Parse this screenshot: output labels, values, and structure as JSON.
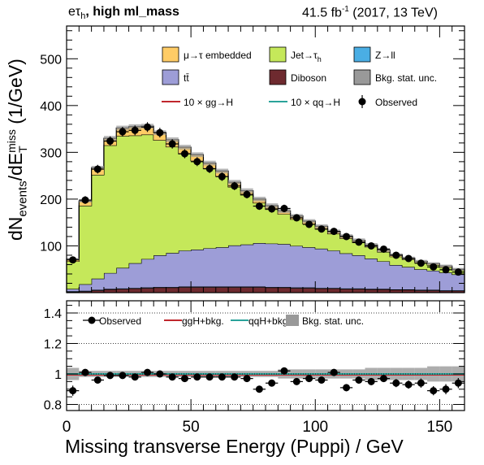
{
  "header": {
    "channel_base": "eτ",
    "channel_sub": "h",
    "category": ", high ml_mass",
    "lumi_value": "41.5 fb",
    "lumi_exp": "-1",
    "lumi_note": " (2017, 13 TeV)"
  },
  "axes": {
    "xlabel": "Missing transverse Energy (Puppi) / GeV",
    "ylabel_main": "dN",
    "ylabel_sub": "events",
    "ylabel_mid": "/dE",
    "ylabel_T": "T",
    "ylabel_miss": "miss",
    "ylabel_unit": " (1/GeV)"
  },
  "legend_main": [
    {
      "label": "μ→τ embedded",
      "color": "#ffcc66",
      "kind": "box"
    },
    {
      "label": "Jet→τ",
      "sub": "h",
      "color": "#c5e85a",
      "kind": "box"
    },
    {
      "label": "Z→ll",
      "color": "#4aaee4",
      "kind": "box"
    },
    {
      "label": "tt̄",
      "color": "#9d9dd7",
      "kind": "box"
    },
    {
      "label": "Diboson",
      "color": "#6e2a2f",
      "kind": "box"
    },
    {
      "label": "Bkg. stat. unc.",
      "color": "#999999",
      "kind": "box"
    },
    {
      "label": "10 × gg→H",
      "color": "#c0272d",
      "kind": "line"
    },
    {
      "label": "10 × qq→H",
      "color": "#2aa39a",
      "kind": "line"
    },
    {
      "label": "Observed",
      "color": "#000000",
      "kind": "marker"
    }
  ],
  "legend_ratio": [
    {
      "label": "Observed",
      "color": "#000000",
      "kind": "marker"
    },
    {
      "label": "ggH+bkg.",
      "color": "#c0272d",
      "kind": "line"
    },
    {
      "label": "qqH+bkg.",
      "color": "#2aa39a",
      "kind": "line"
    },
    {
      "label": "Bkg. stat. unc.",
      "color": "#999999",
      "kind": "box"
    }
  ],
  "chart_data": [
    {
      "type": "bar",
      "stacked": true,
      "x_edges": [
        0,
        5,
        10,
        15,
        20,
        25,
        30,
        35,
        40,
        45,
        50,
        55,
        60,
        65,
        70,
        75,
        80,
        85,
        90,
        95,
        100,
        105,
        110,
        115,
        120,
        125,
        130,
        135,
        140,
        145,
        150,
        155,
        160
      ],
      "xlim": [
        0,
        160
      ],
      "ylim": [
        0,
        570
      ],
      "yticks": [
        100,
        200,
        300,
        400,
        500
      ],
      "series": [
        {
          "name": "Diboson",
          "color": "#6e2a2f",
          "values": [
            2,
            3,
            5,
            7,
            8,
            9,
            10,
            11,
            11,
            12,
            12,
            12,
            12,
            12,
            12,
            12,
            11,
            11,
            10,
            10,
            9,
            9,
            8,
            8,
            7,
            7,
            6,
            6,
            5,
            5,
            4,
            4
          ]
        },
        {
          "name": "Z→ll",
          "color": "#4aaee4",
          "values": [
            1,
            1,
            1,
            1,
            1,
            1,
            1,
            1,
            1,
            1,
            1,
            1,
            1,
            1,
            1,
            1,
            1,
            1,
            1,
            1,
            1,
            1,
            1,
            1,
            1,
            1,
            1,
            1,
            1,
            1,
            1,
            1
          ]
        },
        {
          "name": "tt̄",
          "color": "#9d9dd7",
          "values": [
            5,
            14,
            24,
            34,
            44,
            53,
            61,
            68,
            73,
            77,
            79,
            82,
            84,
            88,
            90,
            93,
            93,
            92,
            89,
            86,
            84,
            80,
            75,
            71,
            65,
            59,
            52,
            48,
            44,
            41,
            38,
            34
          ]
        },
        {
          "name": "Jet→τh",
          "color": "#c5e85a",
          "values": [
            59,
            168,
            222,
            273,
            282,
            273,
            266,
            246,
            227,
            207,
            190,
            170,
            152,
            125,
            106,
            86,
            73,
            64,
            57,
            50,
            42,
            36,
            32,
            27,
            25,
            20,
            18,
            16,
            14,
            12,
            11,
            9
          ]
        },
        {
          "name": "μ→τ embedded",
          "color": "#ffcc66",
          "values": [
            5,
            10,
            15,
            15,
            17,
            19,
            18,
            16,
            15,
            14,
            13,
            12,
            11,
            10,
            9,
            8,
            8,
            7,
            7,
            6,
            6,
            5,
            5,
            5,
            4,
            4,
            4,
            3,
            3,
            3,
            3,
            2
          ]
        }
      ],
      "unc_band": [
        2,
        3,
        4,
        5,
        5,
        5,
        5,
        5,
        5,
        5,
        5,
        5,
        5,
        5,
        5,
        5,
        5,
        5,
        4,
        4,
        4,
        4,
        4,
        4,
        4,
        4,
        3,
        3,
        3,
        3,
        3,
        3
      ],
      "observed": {
        "x": [
          2.5,
          7.5,
          12.5,
          17.5,
          22.5,
          27.5,
          32.5,
          37.5,
          42.5,
          47.5,
          52.5,
          57.5,
          62.5,
          67.5,
          72.5,
          77.5,
          82.5,
          87.5,
          92.5,
          97.5,
          102.5,
          107.5,
          112.5,
          117.5,
          122.5,
          127.5,
          132.5,
          137.5,
          142.5,
          147.5,
          152.5,
          157.5
        ],
        "y": [
          70,
          198,
          264,
          324,
          344,
          347,
          354,
          342,
          318,
          297,
          280,
          265,
          248,
          228,
          210,
          185,
          179,
          180,
          160,
          146,
          136,
          131,
          120,
          108,
          100,
          93,
          80,
          73,
          63,
          55,
          49,
          44
        ]
      },
      "xlabel": "Missing transverse Energy (Puppi) / GeV"
    },
    {
      "type": "scatter",
      "xlim": [
        0,
        160
      ],
      "ylim": [
        0.76,
        1.48
      ],
      "yticks": [
        0.8,
        1.0,
        1.2,
        1.4
      ],
      "yticklabels": [
        "0.8",
        "1",
        "1.2",
        "1.4"
      ],
      "xticks": [
        0,
        50,
        100,
        150
      ],
      "ratio": {
        "x": [
          2.5,
          7.5,
          12.5,
          17.5,
          22.5,
          27.5,
          32.5,
          37.5,
          42.5,
          47.5,
          52.5,
          57.5,
          62.5,
          67.5,
          72.5,
          77.5,
          82.5,
          87.5,
          92.5,
          97.5,
          102.5,
          107.5,
          112.5,
          117.5,
          122.5,
          127.5,
          132.5,
          137.5,
          142.5,
          147.5,
          152.5,
          157.5
        ],
        "y": [
          0.89,
          1.01,
          0.96,
          0.99,
          0.99,
          0.98,
          1.01,
          1.0,
          0.98,
          0.97,
          0.98,
          0.98,
          0.98,
          0.98,
          0.97,
          0.9,
          0.94,
          1.02,
          0.95,
          0.97,
          0.96,
          1.01,
          0.91,
          0.96,
          0.95,
          0.97,
          0.94,
          0.93,
          0.94,
          0.89,
          0.9,
          0.94
        ],
        "err": [
          0.1,
          0.06,
          0.05,
          0.04,
          0.04,
          0.04,
          0.04,
          0.04,
          0.04,
          0.04,
          0.04,
          0.04,
          0.04,
          0.05,
          0.05,
          0.05,
          0.05,
          0.05,
          0.06,
          0.06,
          0.06,
          0.06,
          0.07,
          0.07,
          0.07,
          0.07,
          0.08,
          0.08,
          0.09,
          0.09,
          0.1,
          0.1
        ]
      },
      "unc_band": [
        0.04,
        0.02,
        0.02,
        0.02,
        0.02,
        0.02,
        0.02,
        0.02,
        0.02,
        0.02,
        0.02,
        0.02,
        0.02,
        0.02,
        0.02,
        0.02,
        0.02,
        0.03,
        0.03,
        0.03,
        0.03,
        0.03,
        0.03,
        0.03,
        0.04,
        0.04,
        0.04,
        0.04,
        0.04,
        0.05,
        0.05,
        0.05
      ],
      "ggH_line": 1.0,
      "qqH_line": 1.0
    }
  ]
}
